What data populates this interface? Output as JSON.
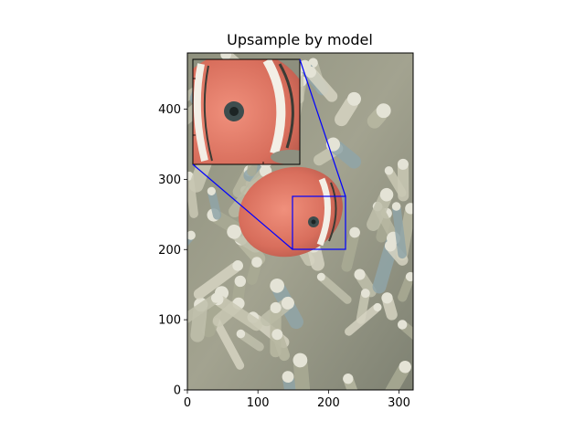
{
  "chart_data": {
    "type": "image",
    "title": "Upsample by model",
    "xlabel": "",
    "ylabel": "",
    "xlim": [
      0,
      320
    ],
    "ylim": [
      0,
      480
    ],
    "xticks": [
      0,
      100,
      200,
      300
    ],
    "yticks": [
      0,
      100,
      200,
      300,
      400
    ],
    "zoom_region": {
      "x": [
        150,
        225
      ],
      "y": [
        200,
        275
      ]
    },
    "colors": {
      "indicator": "#0000ff",
      "axes": "#000000",
      "sea_anemone": "#9a9a86",
      "fish": "#e07a66"
    }
  }
}
